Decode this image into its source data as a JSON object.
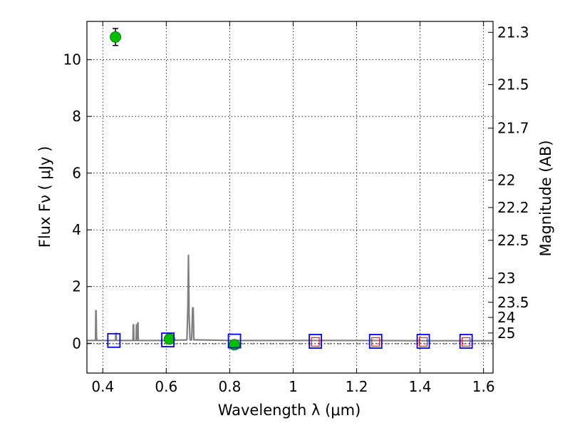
{
  "chart_data": {
    "type": "scatter",
    "title": "",
    "xlabel": "Wavelength  λ (μm)",
    "ylabel": "Flux  Fν ( μJy )",
    "ylabel_right": "Magnitude (AB)",
    "xlim": [
      0.35,
      1.63
    ],
    "ylim": [
      -1.05,
      11.35
    ],
    "grid": true,
    "legend": "none",
    "x_ticks": [
      0.4,
      0.6,
      0.8,
      1.0,
      1.2,
      1.4,
      1.6
    ],
    "x_tick_labels": [
      "0.4",
      "0.6",
      "0.8",
      "1",
      "1.2",
      "1.4",
      "1.6"
    ],
    "y_ticks": [
      0,
      2,
      4,
      6,
      8,
      10
    ],
    "y_tick_labels": [
      "0",
      "2",
      "4",
      "6",
      "8",
      "10"
    ],
    "mag_ticks": [
      21.3,
      21.5,
      21.7,
      22,
      22.2,
      22.5,
      23,
      23.5,
      24,
      25
    ],
    "mag_tick_labels": [
      "21.3",
      "21.5",
      "21.7",
      "22",
      "22.2",
      "22.5",
      "23",
      "23.5",
      "24",
      "25"
    ],
    "series": [
      {
        "type": "line",
        "color": "#808080",
        "x": [
          0.35,
          0.377,
          0.378,
          0.379,
          0.38,
          0.381,
          0.4,
          0.44,
          0.441,
          0.442,
          0.443,
          0.49,
          0.495,
          0.496,
          0.497,
          0.498,
          0.505,
          0.506,
          0.507,
          0.508,
          0.509,
          0.51,
          0.511,
          0.512,
          0.6,
          0.665,
          0.668,
          0.67,
          0.672,
          0.675,
          0.68,
          0.683,
          0.685,
          0.687,
          0.69,
          0.7,
          0.8,
          1.0,
          1.2,
          1.4,
          1.63
        ],
        "y": [
          0.1,
          0.1,
          1.15,
          1.15,
          0.3,
          0.1,
          0.1,
          0.1,
          0.35,
          0.35,
          0.1,
          0.1,
          0.1,
          0.65,
          0.65,
          0.1,
          0.1,
          0.65,
          0.65,
          0.1,
          0.1,
          0.72,
          0.72,
          0.1,
          0.1,
          0.12,
          1.2,
          3.1,
          1.0,
          0.12,
          0.12,
          1.25,
          1.25,
          0.12,
          0.12,
          0.12,
          0.1,
          0.1,
          0.1,
          0.09,
          0.09
        ]
      },
      {
        "type": "scatter",
        "marker": "circle",
        "color": "#00c000",
        "x": [
          0.44,
          0.61,
          0.815
        ],
        "y": [
          10.8,
          0.15,
          -0.05
        ],
        "yerr": [
          0.3,
          0.08,
          0.05
        ]
      },
      {
        "type": "scatter",
        "marker": "square-open",
        "color": "#0000ff",
        "x": [
          0.435,
          0.605,
          0.815,
          1.07,
          1.26,
          1.41,
          1.545
        ],
        "y": [
          0.1,
          0.12,
          0.08,
          0.07,
          0.07,
          0.07,
          0.07
        ]
      },
      {
        "type": "scatter",
        "marker": "square-open-small",
        "color": "#ff0000",
        "x": [
          1.07,
          1.26,
          1.41,
          1.545
        ],
        "y": [
          0.05,
          0.05,
          0.05,
          0.05
        ]
      }
    ],
    "reference_line": {
      "y": -0.02,
      "style": "dash-dot",
      "color": "#606060"
    }
  }
}
